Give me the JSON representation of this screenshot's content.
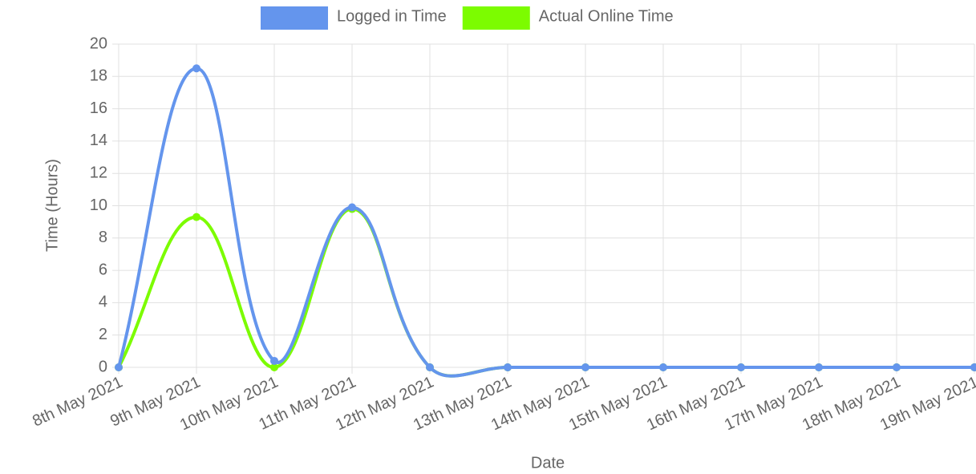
{
  "chart_data": {
    "type": "line",
    "categories": [
      "8th May 2021",
      "9th May 2021",
      "10th May 2021",
      "11th May 2021",
      "12th May 2021",
      "13th May 2021",
      "14th May 2021",
      "15th May 2021",
      "16th May 2021",
      "17th May 2021",
      "18th May 2021",
      "19th May 2021"
    ],
    "series": [
      {
        "name": "Logged in Time",
        "color": "#6495ed",
        "values": [
          0,
          18.5,
          0.4,
          9.9,
          0,
          0,
          0,
          0,
          0,
          0,
          0,
          0
        ]
      },
      {
        "name": "Actual Online Time",
        "color": "#7cfc00",
        "values": [
          0,
          9.3,
          0,
          9.8,
          0,
          0,
          0,
          0,
          0,
          0,
          0,
          0
        ]
      }
    ],
    "x_label": "Date",
    "y_label": "Time (Hours)",
    "ylim": [
      0,
      20
    ],
    "yticks": [
      0,
      2,
      4,
      6,
      8,
      10,
      12,
      14,
      16,
      18,
      20
    ],
    "grid": true,
    "legend": "top"
  }
}
